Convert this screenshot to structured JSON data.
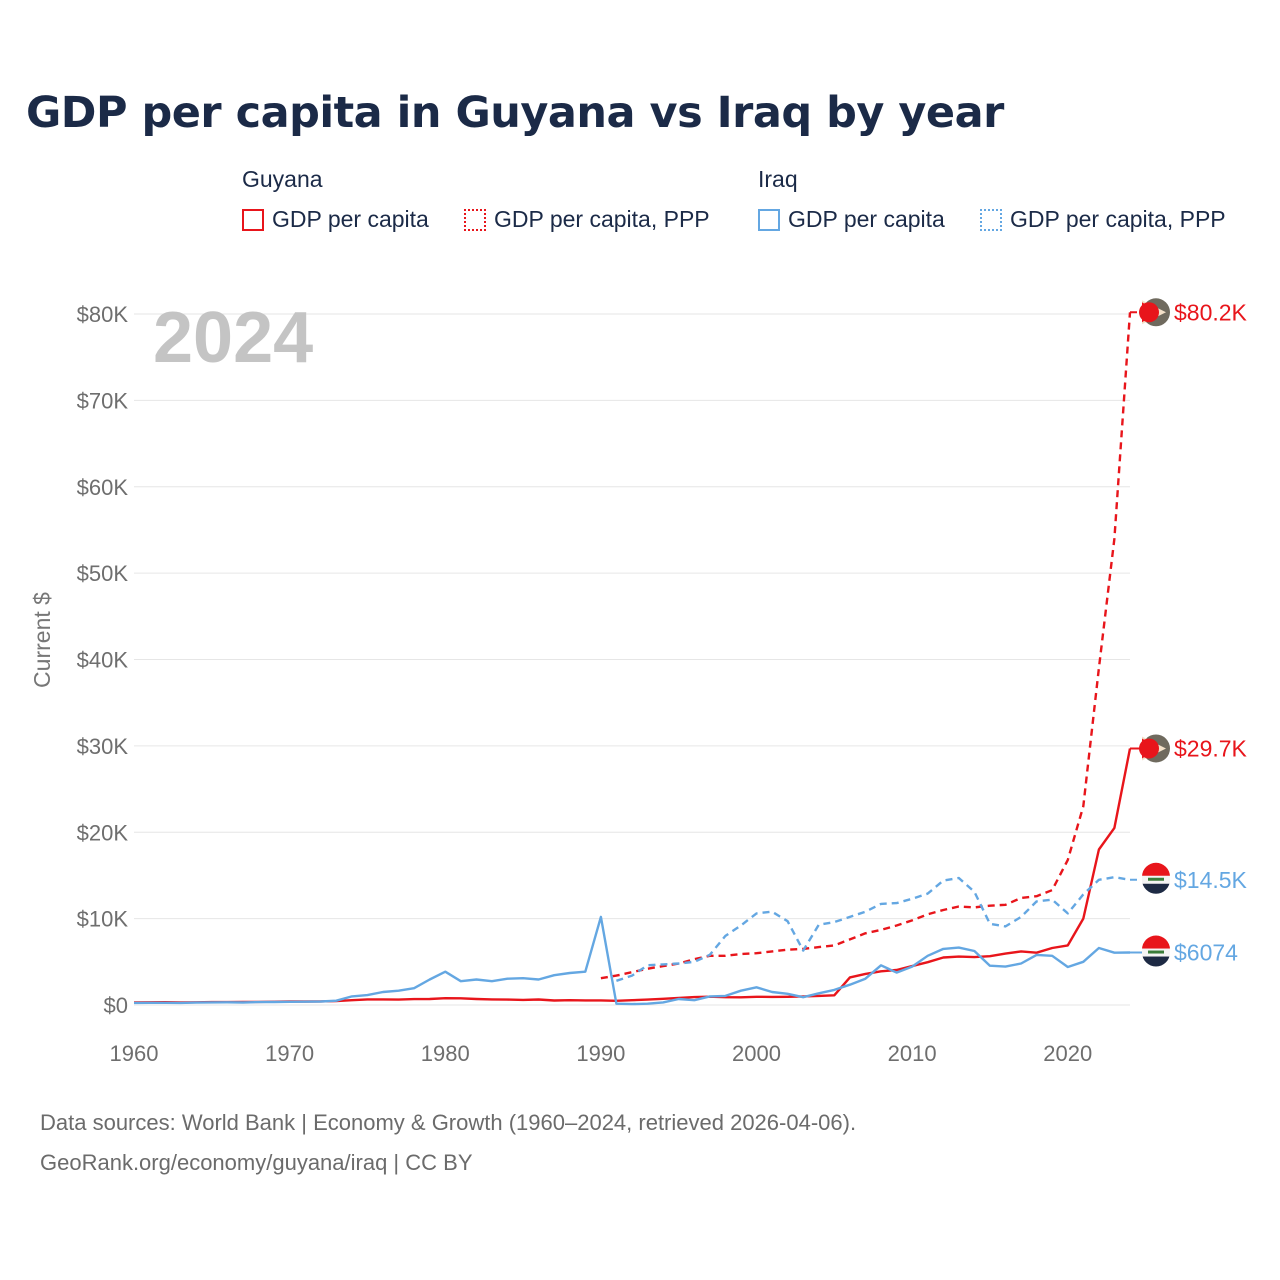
{
  "title": "GDP per capita in Guyana vs Iraq by year",
  "legend": {
    "groups": [
      {
        "country": "Guyana",
        "items": [
          {
            "label": "GDP per capita",
            "style": "solid",
            "color": "#e8151b"
          },
          {
            "label": "GDP per capita, PPP",
            "style": "dotted",
            "color": "#e8151b"
          }
        ]
      },
      {
        "country": "Iraq",
        "items": [
          {
            "label": "GDP per capita",
            "style": "solid",
            "color": "#64a7e2"
          },
          {
            "label": "GDP per capita, PPP",
            "style": "dotted",
            "color": "#64a7e2"
          }
        ]
      }
    ]
  },
  "footer": {
    "line1": "Data sources: World Bank | Economy & Growth (1960–2024, retrieved 2026-04-06).",
    "line2": "GeoRank.org/economy/guyana/iraq | CC BY"
  },
  "chart_data": {
    "type": "line",
    "title": "GDP per capita in Guyana vs Iraq by year",
    "year_watermark": "2024",
    "ylabel": "Current $",
    "xlabel": "",
    "xlim": [
      1960,
      2024
    ],
    "ylim": [
      0,
      80000
    ],
    "x_ticks": [
      1960,
      1970,
      1980,
      1990,
      2000,
      2010,
      2020
    ],
    "y_ticks": [
      0,
      10000,
      20000,
      30000,
      40000,
      50000,
      60000,
      70000,
      80000
    ],
    "y_tick_labels": [
      "$0",
      "$10K",
      "$20K",
      "$30K",
      "$40K",
      "$50K",
      "$60K",
      "$70K",
      "$80K"
    ],
    "grid": true,
    "series": [
      {
        "name": "Guyana GDP per capita",
        "color": "#e8151b",
        "dash": "solid",
        "end_label": "$29.7K",
        "x": [
          1960,
          1961,
          1962,
          1963,
          1964,
          1965,
          1966,
          1967,
          1968,
          1969,
          1970,
          1971,
          1972,
          1973,
          1974,
          1975,
          1976,
          1977,
          1978,
          1979,
          1980,
          1981,
          1982,
          1983,
          1984,
          1985,
          1986,
          1987,
          1988,
          1989,
          1990,
          1991,
          1992,
          1993,
          1994,
          1995,
          1996,
          1997,
          1998,
          1999,
          2000,
          2001,
          2002,
          2003,
          2004,
          2005,
          2006,
          2007,
          2008,
          2009,
          2010,
          2011,
          2012,
          2013,
          2014,
          2015,
          2016,
          2017,
          2018,
          2019,
          2020,
          2021,
          2022,
          2023,
          2024
        ],
        "values": [
          290,
          310,
          320,
          300,
          310,
          330,
          340,
          350,
          360,
          380,
          400,
          410,
          420,
          450,
          560,
          650,
          650,
          630,
          680,
          700,
          790,
          780,
          690,
          650,
          620,
          590,
          640,
          520,
          560,
          530,
          530,
          490,
          560,
          630,
          720,
          820,
          920,
          960,
          900,
          890,
          950,
          940,
          950,
          1000,
          1050,
          1120,
          3200,
          3600,
          3900,
          4050,
          4500,
          4950,
          5500,
          5600,
          5550,
          5650,
          5950,
          6200,
          6050,
          6600,
          6900,
          10000,
          18000,
          20500,
          29700
        ]
      },
      {
        "name": "Guyana GDP per capita, PPP",
        "color": "#e8151b",
        "dash": "dashed",
        "end_label": "$80.2K",
        "x": [
          1990,
          1991,
          1992,
          1993,
          1994,
          1995,
          1996,
          1997,
          1998,
          1999,
          2000,
          2001,
          2002,
          2003,
          2004,
          2005,
          2006,
          2007,
          2008,
          2009,
          2010,
          2011,
          2012,
          2013,
          2014,
          2015,
          2016,
          2017,
          2018,
          2019,
          2020,
          2021,
          2022,
          2023,
          2024
        ],
        "values": [
          3100,
          3400,
          3800,
          4200,
          4500,
          4800,
          5300,
          5700,
          5700,
          5900,
          6000,
          6200,
          6400,
          6500,
          6700,
          6900,
          7600,
          8300,
          8700,
          9200,
          9800,
          10500,
          11000,
          11400,
          11300,
          11500,
          11600,
          12400,
          12600,
          13300,
          16800,
          23000,
          39000,
          54000,
          80200
        ]
      },
      {
        "name": "Iraq GDP per capita",
        "color": "#64a7e2",
        "dash": "solid",
        "end_label": "$6074",
        "x": [
          1960,
          1961,
          1962,
          1963,
          1964,
          1965,
          1966,
          1967,
          1968,
          1969,
          1970,
          1971,
          1972,
          1973,
          1974,
          1975,
          1976,
          1977,
          1978,
          1979,
          1980,
          1981,
          1982,
          1983,
          1984,
          1985,
          1986,
          1987,
          1988,
          1989,
          1990,
          1991,
          1992,
          1993,
          1994,
          1995,
          1996,
          1997,
          1998,
          1999,
          2000,
          2001,
          2002,
          2003,
          2004,
          2005,
          2006,
          2007,
          2008,
          2009,
          2010,
          2011,
          2012,
          2013,
          2014,
          2015,
          2016,
          2017,
          2018,
          2019,
          2020,
          2021,
          2022,
          2023,
          2024
        ],
        "values": [
          240,
          250,
          260,
          240,
          280,
          300,
          310,
          290,
          330,
          350,
          370,
          380,
          410,
          500,
          1000,
          1150,
          1500,
          1650,
          1950,
          2950,
          3850,
          2750,
          2950,
          2750,
          3050,
          3100,
          2950,
          3450,
          3700,
          3850,
          10200,
          150,
          100,
          150,
          300,
          700,
          550,
          1000,
          1050,
          1650,
          2050,
          1500,
          1300,
          900,
          1350,
          1750,
          2350,
          3050,
          4600,
          3750,
          4450,
          5700,
          6500,
          6650,
          6250,
          4550,
          4450,
          4800,
          5800,
          5700,
          4400,
          5000,
          6600,
          6050,
          6074
        ]
      },
      {
        "name": "Iraq GDP per capita, PPP",
        "color": "#64a7e2",
        "dash": "dashed",
        "end_label": "$14.5K",
        "x": [
          1991,
          1992,
          1993,
          1994,
          1995,
          1996,
          1997,
          1998,
          1999,
          2000,
          2001,
          2002,
          2003,
          2004,
          2005,
          2006,
          2007,
          2008,
          2009,
          2010,
          2011,
          2012,
          2013,
          2014,
          2015,
          2016,
          2017,
          2018,
          2019,
          2020,
          2021,
          2022,
          2023,
          2024
        ],
        "values": [
          2800,
          3400,
          4600,
          4700,
          4800,
          5000,
          5800,
          8000,
          9200,
          10600,
          10800,
          9700,
          6300,
          9300,
          9600,
          10200,
          10800,
          11700,
          11800,
          12300,
          12900,
          14400,
          14700,
          13100,
          9400,
          9100,
          10200,
          12000,
          12200,
          10600,
          12800,
          14500,
          14800,
          14500
        ]
      }
    ]
  }
}
